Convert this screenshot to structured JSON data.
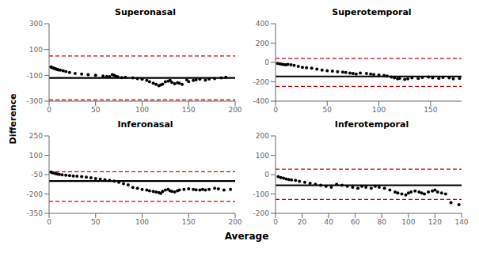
{
  "xlabel": "Average",
  "ylabel": "Difference",
  "chart_data": [
    {
      "type": "scatter",
      "title": "Superonasal",
      "xlim": [
        0,
        200
      ],
      "ylim": [
        -300,
        300
      ],
      "xticks": [
        0,
        50,
        100,
        150,
        200
      ],
      "yticks": [
        -300,
        -100,
        100,
        300
      ],
      "grid": false,
      "color": "#000000",
      "marker": "circle",
      "x": [
        2,
        3,
        4,
        5,
        6,
        7,
        8,
        9,
        10,
        12,
        15,
        18,
        22,
        28,
        35,
        42,
        50,
        58,
        62,
        65,
        68,
        70,
        72,
        74,
        78,
        82,
        90,
        95,
        100,
        105,
        108,
        112,
        115,
        118,
        120,
        122,
        125,
        128,
        130,
        132,
        135,
        138,
        140,
        143,
        148,
        150,
        155,
        158,
        162,
        168,
        172,
        178,
        185,
        190
      ],
      "values": [
        -35,
        -40,
        -42,
        -45,
        -48,
        -50,
        -52,
        -55,
        -58,
        -60,
        -65,
        -70,
        -78,
        -85,
        -90,
        -95,
        -100,
        -105,
        -108,
        -110,
        -95,
        -100,
        -108,
        -112,
        -118,
        -115,
        -120,
        -125,
        -130,
        -140,
        -150,
        -160,
        -170,
        -180,
        -175,
        -168,
        -150,
        -145,
        -140,
        -155,
        -165,
        -158,
        -160,
        -170,
        -135,
        -148,
        -140,
        -135,
        -130,
        -138,
        -128,
        -125,
        -120,
        -115
      ],
      "reference_lines": [
        {
          "y": -120,
          "color": "#000000",
          "line_style": "solid"
        },
        {
          "y": 50,
          "color": "#cc0000",
          "line_style": "dashed"
        },
        {
          "y": -290,
          "color": "#cc0000",
          "line_style": "dashed"
        }
      ]
    },
    {
      "type": "scatter",
      "title": "Superotemporal",
      "xlim": [
        0,
        180
      ],
      "ylim": [
        -400,
        400
      ],
      "xticks": [
        0,
        50,
        100,
        150
      ],
      "yticks": [
        -400,
        -200,
        0,
        200,
        400
      ],
      "grid": false,
      "color": "#000000",
      "marker": "circle",
      "x": [
        2,
        4,
        6,
        8,
        10,
        12,
        15,
        18,
        22,
        26,
        30,
        35,
        40,
        45,
        50,
        55,
        60,
        65,
        68,
        72,
        75,
        78,
        82,
        88,
        92,
        95,
        100,
        105,
        108,
        112,
        115,
        118,
        120,
        125,
        128,
        132,
        138,
        142,
        148,
        152,
        158,
        162,
        168,
        172,
        178
      ],
      "values": [
        -10,
        -15,
        -18,
        -22,
        -25,
        -20,
        -25,
        -30,
        -40,
        -50,
        -55,
        -60,
        -70,
        -80,
        -85,
        -90,
        -95,
        -100,
        -105,
        -110,
        -115,
        -120,
        -110,
        -115,
        -120,
        -125,
        -130,
        -135,
        -140,
        -150,
        -160,
        -170,
        -165,
        -175,
        -170,
        -160,
        -165,
        -155,
        -150,
        -160,
        -165,
        -155,
        -160,
        -170,
        -165
      ],
      "reference_lines": [
        {
          "y": -145,
          "color": "#000000",
          "line_style": "solid"
        },
        {
          "y": 42,
          "color": "#cc0000",
          "line_style": "dashed"
        },
        {
          "y": -248,
          "color": "#cc0000",
          "line_style": "dashed"
        }
      ]
    },
    {
      "type": "scatter",
      "title": "Inferonasal",
      "xlim": [
        0,
        200
      ],
      "ylim": [
        -350,
        250
      ],
      "xticks": [
        0,
        50,
        100,
        150,
        200
      ],
      "yticks": [
        -350,
        -200,
        -50,
        100,
        250
      ],
      "grid": false,
      "color": "#000000",
      "marker": "circle",
      "x": [
        2,
        3,
        5,
        7,
        9,
        11,
        14,
        18,
        22,
        26,
        30,
        35,
        40,
        45,
        50,
        55,
        60,
        65,
        70,
        75,
        80,
        85,
        90,
        95,
        100,
        105,
        108,
        112,
        115,
        118,
        120,
        122,
        125,
        128,
        130,
        132,
        135,
        138,
        140,
        145,
        150,
        155,
        158,
        162,
        165,
        168,
        172,
        178,
        182,
        188,
        195
      ],
      "values": [
        -30,
        -35,
        -38,
        -42,
        -45,
        -48,
        -52,
        -55,
        -58,
        -60,
        -62,
        -65,
        -70,
        -75,
        -80,
        -85,
        -90,
        -95,
        -100,
        -110,
        -120,
        -130,
        -150,
        -155,
        -165,
        -170,
        -175,
        -180,
        -185,
        -190,
        -195,
        -180,
        -170,
        -165,
        -175,
        -180,
        -185,
        -175,
        -170,
        -165,
        -160,
        -165,
        -168,
        -170,
        -165,
        -170,
        -165,
        -155,
        -160,
        -170,
        -165
      ],
      "reference_lines": [
        {
          "y": -100,
          "color": "#000000",
          "line_style": "solid"
        },
        {
          "y": -28,
          "color": "#cc0000",
          "line_style": "dashed"
        },
        {
          "y": -258,
          "color": "#cc0000",
          "line_style": "dashed"
        }
      ]
    },
    {
      "type": "scatter",
      "title": "Inferotemporal",
      "xlim": [
        0,
        140
      ],
      "ylim": [
        -200,
        200
      ],
      "xticks": [
        0,
        20,
        40,
        60,
        80,
        100,
        120,
        140
      ],
      "yticks": [
        -200,
        -100,
        0,
        100,
        200
      ],
      "grid": false,
      "color": "#000000",
      "marker": "circle",
      "x": [
        2,
        4,
        6,
        8,
        10,
        12,
        15,
        18,
        22,
        26,
        30,
        34,
        38,
        42,
        46,
        50,
        54,
        58,
        62,
        65,
        68,
        72,
        75,
        78,
        82,
        86,
        90,
        92,
        95,
        98,
        100,
        102,
        105,
        108,
        110,
        112,
        115,
        118,
        120,
        122,
        125,
        128,
        132,
        138
      ],
      "values": [
        -10,
        -15,
        -18,
        -22,
        -25,
        -28,
        -30,
        -35,
        -40,
        -45,
        -50,
        -55,
        -60,
        -65,
        -50,
        -55,
        -60,
        -65,
        -70,
        -60,
        -65,
        -70,
        -60,
        -65,
        -70,
        -80,
        -90,
        -95,
        -100,
        -105,
        -95,
        -90,
        -85,
        -90,
        -95,
        -100,
        -90,
        -85,
        -80,
        -90,
        -95,
        -100,
        -145,
        -155
      ],
      "reference_lines": [
        {
          "y": -55,
          "color": "#000000",
          "line_style": "solid"
        },
        {
          "y": 28,
          "color": "#cc0000",
          "line_style": "dashed"
        },
        {
          "y": -128,
          "color": "#cc0000",
          "line_style": "dashed"
        }
      ]
    }
  ]
}
